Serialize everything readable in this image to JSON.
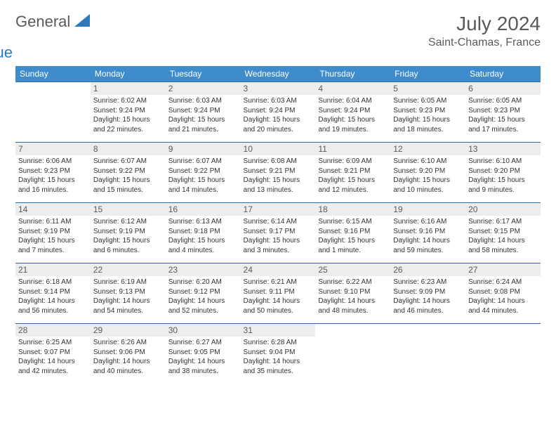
{
  "brand": {
    "text1": "General",
    "text2": "Blue"
  },
  "title": "July 2024",
  "location": "Saint-Chamas, France",
  "colors": {
    "header_bg": "#3e8ccc",
    "header_text": "#ffffff",
    "row_border": "#2f6aa0",
    "daynum_bg": "#eceded",
    "text": "#333333",
    "muted": "#5a5a5a",
    "brand_blue": "#2f78bb"
  },
  "fonts": {
    "title_size": 28,
    "loc_size": 16,
    "th_size": 12,
    "daynum_size": 12,
    "body_size": 10
  },
  "weekdays": [
    "Sunday",
    "Monday",
    "Tuesday",
    "Wednesday",
    "Thursday",
    "Friday",
    "Saturday"
  ],
  "grid": {
    "rows": 5,
    "cols": 7,
    "first_weekday_index": 1,
    "days_in_month": 31
  },
  "days": {
    "1": {
      "sunrise": "6:02 AM",
      "sunset": "9:24 PM",
      "daylight": "15 hours and 22 minutes."
    },
    "2": {
      "sunrise": "6:03 AM",
      "sunset": "9:24 PM",
      "daylight": "15 hours and 21 minutes."
    },
    "3": {
      "sunrise": "6:03 AM",
      "sunset": "9:24 PM",
      "daylight": "15 hours and 20 minutes."
    },
    "4": {
      "sunrise": "6:04 AM",
      "sunset": "9:24 PM",
      "daylight": "15 hours and 19 minutes."
    },
    "5": {
      "sunrise": "6:05 AM",
      "sunset": "9:23 PM",
      "daylight": "15 hours and 18 minutes."
    },
    "6": {
      "sunrise": "6:05 AM",
      "sunset": "9:23 PM",
      "daylight": "15 hours and 17 minutes."
    },
    "7": {
      "sunrise": "6:06 AM",
      "sunset": "9:23 PM",
      "daylight": "15 hours and 16 minutes."
    },
    "8": {
      "sunrise": "6:07 AM",
      "sunset": "9:22 PM",
      "daylight": "15 hours and 15 minutes."
    },
    "9": {
      "sunrise": "6:07 AM",
      "sunset": "9:22 PM",
      "daylight": "15 hours and 14 minutes."
    },
    "10": {
      "sunrise": "6:08 AM",
      "sunset": "9:21 PM",
      "daylight": "15 hours and 13 minutes."
    },
    "11": {
      "sunrise": "6:09 AM",
      "sunset": "9:21 PM",
      "daylight": "15 hours and 12 minutes."
    },
    "12": {
      "sunrise": "6:10 AM",
      "sunset": "9:20 PM",
      "daylight": "15 hours and 10 minutes."
    },
    "13": {
      "sunrise": "6:10 AM",
      "sunset": "9:20 PM",
      "daylight": "15 hours and 9 minutes."
    },
    "14": {
      "sunrise": "6:11 AM",
      "sunset": "9:19 PM",
      "daylight": "15 hours and 7 minutes."
    },
    "15": {
      "sunrise": "6:12 AM",
      "sunset": "9:19 PM",
      "daylight": "15 hours and 6 minutes."
    },
    "16": {
      "sunrise": "6:13 AM",
      "sunset": "9:18 PM",
      "daylight": "15 hours and 4 minutes."
    },
    "17": {
      "sunrise": "6:14 AM",
      "sunset": "9:17 PM",
      "daylight": "15 hours and 3 minutes."
    },
    "18": {
      "sunrise": "6:15 AM",
      "sunset": "9:16 PM",
      "daylight": "15 hours and 1 minute."
    },
    "19": {
      "sunrise": "6:16 AM",
      "sunset": "9:16 PM",
      "daylight": "14 hours and 59 minutes."
    },
    "20": {
      "sunrise": "6:17 AM",
      "sunset": "9:15 PM",
      "daylight": "14 hours and 58 minutes."
    },
    "21": {
      "sunrise": "6:18 AM",
      "sunset": "9:14 PM",
      "daylight": "14 hours and 56 minutes."
    },
    "22": {
      "sunrise": "6:19 AM",
      "sunset": "9:13 PM",
      "daylight": "14 hours and 54 minutes."
    },
    "23": {
      "sunrise": "6:20 AM",
      "sunset": "9:12 PM",
      "daylight": "14 hours and 52 minutes."
    },
    "24": {
      "sunrise": "6:21 AM",
      "sunset": "9:11 PM",
      "daylight": "14 hours and 50 minutes."
    },
    "25": {
      "sunrise": "6:22 AM",
      "sunset": "9:10 PM",
      "daylight": "14 hours and 48 minutes."
    },
    "26": {
      "sunrise": "6:23 AM",
      "sunset": "9:09 PM",
      "daylight": "14 hours and 46 minutes."
    },
    "27": {
      "sunrise": "6:24 AM",
      "sunset": "9:08 PM",
      "daylight": "14 hours and 44 minutes."
    },
    "28": {
      "sunrise": "6:25 AM",
      "sunset": "9:07 PM",
      "daylight": "14 hours and 42 minutes."
    },
    "29": {
      "sunrise": "6:26 AM",
      "sunset": "9:06 PM",
      "daylight": "14 hours and 40 minutes."
    },
    "30": {
      "sunrise": "6:27 AM",
      "sunset": "9:05 PM",
      "daylight": "14 hours and 38 minutes."
    },
    "31": {
      "sunrise": "6:28 AM",
      "sunset": "9:04 PM",
      "daylight": "14 hours and 35 minutes."
    }
  },
  "labels": {
    "sunrise": "Sunrise:",
    "sunset": "Sunset:",
    "daylight": "Daylight:"
  }
}
